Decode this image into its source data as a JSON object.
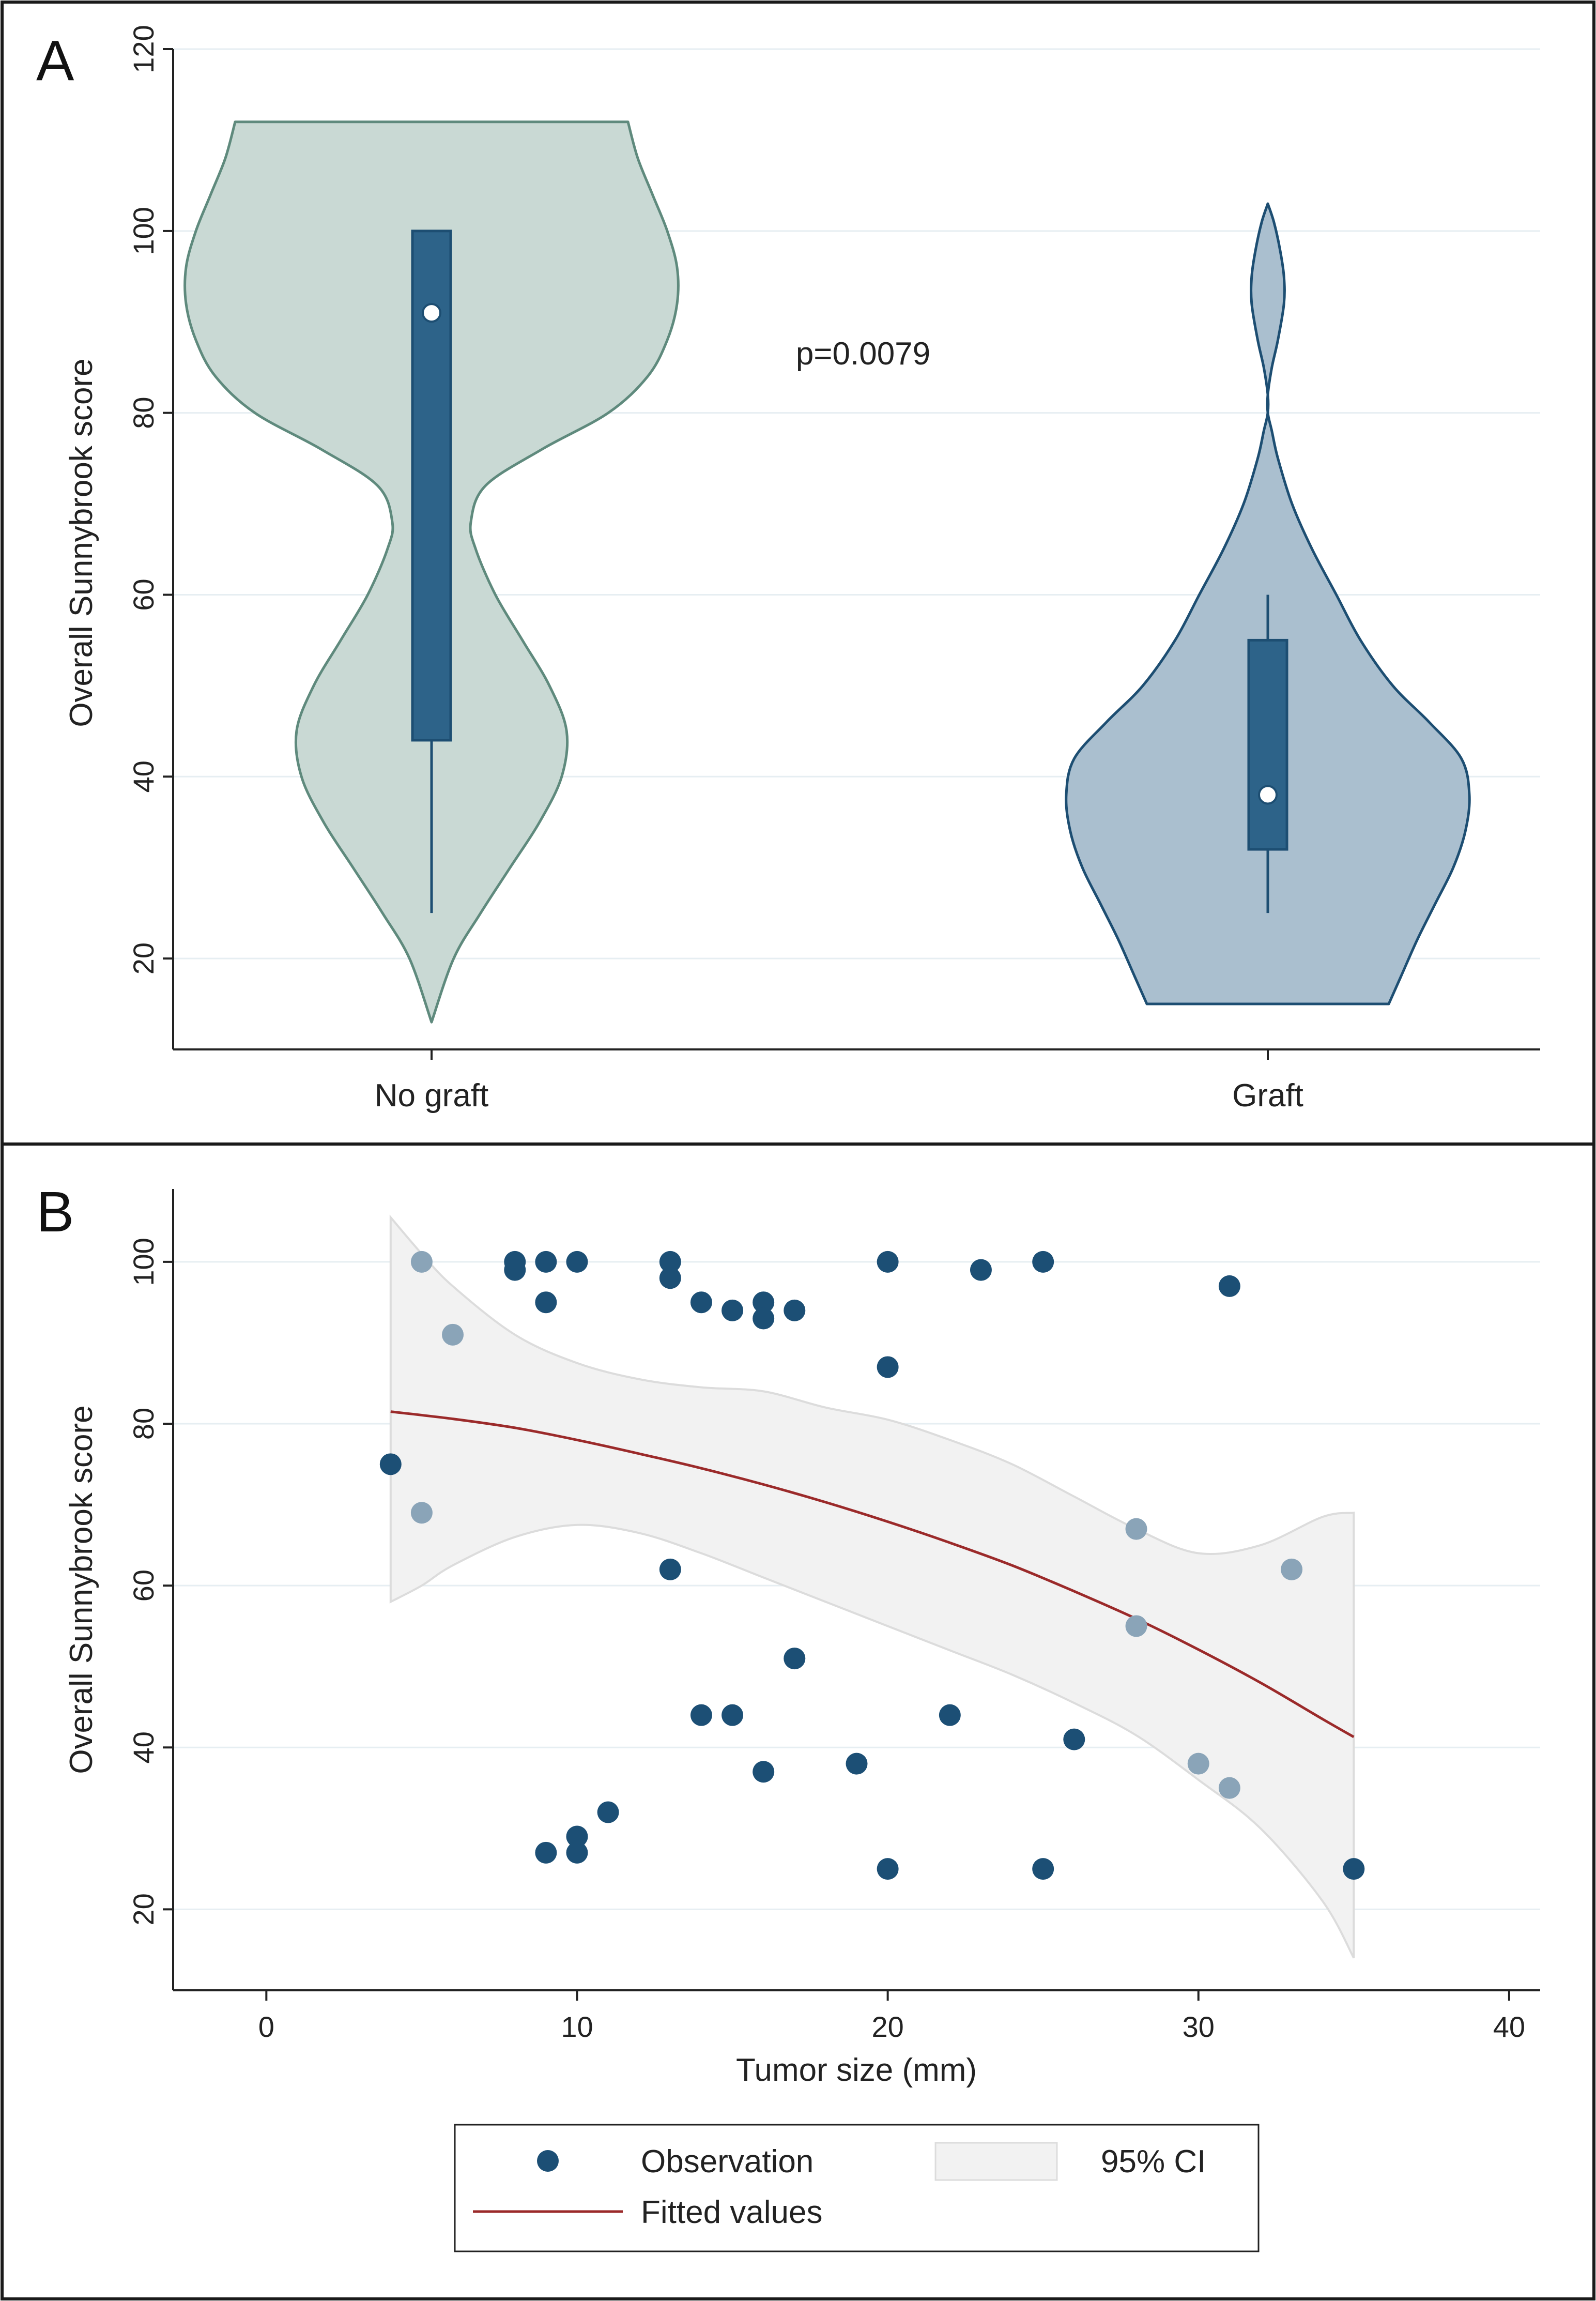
{
  "colors": {
    "frame": "#1a1a1a",
    "plot_bg": "#ffffff",
    "grid": "#e6eef2",
    "no_graft_fill": "#c9d9d4",
    "no_graft_line": "#5f8a7d",
    "graft_fill": "#aabfcf",
    "graft_line": "#1d4e72",
    "box": "#2d6389",
    "box_line": "#1d4e72",
    "obs_dark": "#1c4f75",
    "obs_light": "#8aa4b8",
    "ci_fill": "#f2f2f2",
    "ci_line": "#dcdcdc",
    "fit_line": "#9b2a2a"
  },
  "chart_data": [
    {
      "panel_label": "A",
      "type": "violin",
      "title": "",
      "ylabel": "Overall Sunnybrook score",
      "ylim": [
        10,
        120
      ],
      "yticks": [
        20,
        40,
        60,
        80,
        100,
        120
      ],
      "grid": true,
      "annotation": "p=0.0079",
      "groups": [
        {
          "name": "No graft",
          "density_range": [
            13,
            112
          ],
          "box": {
            "q1": 44,
            "median": 91,
            "q3": 100,
            "whisker_low": 25,
            "whisker_high": 100
          },
          "density_profile": [
            [
              13,
              0.0
            ],
            [
              20,
              0.09
            ],
            [
              25,
              0.2
            ],
            [
              30,
              0.32
            ],
            [
              35,
              0.44
            ],
            [
              40,
              0.53
            ],
            [
              45,
              0.55
            ],
            [
              50,
              0.48
            ],
            [
              55,
              0.37
            ],
            [
              60,
              0.26
            ],
            [
              65,
              0.18
            ],
            [
              68,
              0.16
            ],
            [
              72,
              0.22
            ],
            [
              76,
              0.45
            ],
            [
              80,
              0.72
            ],
            [
              84,
              0.88
            ],
            [
              88,
              0.96
            ],
            [
              92,
              1.0
            ],
            [
              96,
              1.0
            ],
            [
              100,
              0.96
            ],
            [
              104,
              0.9
            ],
            [
              108,
              0.84
            ],
            [
              112,
              0.8
            ]
          ]
        },
        {
          "name": "Graft",
          "density_range": [
            15,
            103
          ],
          "box": {
            "q1": 32,
            "median": 38,
            "q3": 55,
            "whisker_low": 25,
            "whisker_high": 60
          },
          "density_profile": [
            [
              15,
              0.6
            ],
            [
              18,
              0.66
            ],
            [
              22,
              0.74
            ],
            [
              26,
              0.83
            ],
            [
              30,
              0.92
            ],
            [
              34,
              0.98
            ],
            [
              38,
              1.0
            ],
            [
              42,
              0.96
            ],
            [
              46,
              0.8
            ],
            [
              50,
              0.62
            ],
            [
              55,
              0.46
            ],
            [
              60,
              0.34
            ],
            [
              65,
              0.22
            ],
            [
              70,
              0.12
            ],
            [
              75,
              0.05
            ],
            [
              78,
              0.02
            ],
            [
              80,
              0.0
            ],
            [
              82,
              0.0
            ],
            [
              85,
              0.02
            ],
            [
              88,
              0.05
            ],
            [
              92,
              0.08
            ],
            [
              95,
              0.08
            ],
            [
              98,
              0.06
            ],
            [
              101,
              0.03
            ],
            [
              103,
              0.0
            ]
          ]
        }
      ]
    },
    {
      "panel_label": "B",
      "type": "scatter",
      "title": "",
      "xlabel": "Tumor size (mm)",
      "ylabel": "Overall Sunnybrook score",
      "xlim": [
        -3,
        41
      ],
      "ylim": [
        10,
        109
      ],
      "xticks": [
        0,
        10,
        20,
        30,
        40
      ],
      "yticks": [
        20,
        40,
        60,
        80,
        100
      ],
      "grid": true,
      "legend_position": "bottom",
      "legend": {
        "observation": "Observation",
        "ci": "95% CI",
        "fitted": "Fitted values"
      },
      "observations": [
        {
          "x": 4,
          "y": 75,
          "tone": "dark"
        },
        {
          "x": 5,
          "y": 100,
          "tone": "light"
        },
        {
          "x": 5,
          "y": 69,
          "tone": "light"
        },
        {
          "x": 6,
          "y": 91,
          "tone": "light"
        },
        {
          "x": 8,
          "y": 100,
          "tone": "dark"
        },
        {
          "x": 8,
          "y": 99,
          "tone": "dark"
        },
        {
          "x": 9,
          "y": 100,
          "tone": "dark"
        },
        {
          "x": 9,
          "y": 95,
          "tone": "dark"
        },
        {
          "x": 9,
          "y": 27,
          "tone": "dark"
        },
        {
          "x": 10,
          "y": 100,
          "tone": "dark"
        },
        {
          "x": 10,
          "y": 29,
          "tone": "dark"
        },
        {
          "x": 10,
          "y": 27,
          "tone": "dark"
        },
        {
          "x": 11,
          "y": 32,
          "tone": "dark"
        },
        {
          "x": 13,
          "y": 100,
          "tone": "dark"
        },
        {
          "x": 13,
          "y": 98,
          "tone": "dark"
        },
        {
          "x": 13,
          "y": 62,
          "tone": "dark"
        },
        {
          "x": 14,
          "y": 95,
          "tone": "dark"
        },
        {
          "x": 14,
          "y": 44,
          "tone": "dark"
        },
        {
          "x": 15,
          "y": 94,
          "tone": "dark"
        },
        {
          "x": 15,
          "y": 44,
          "tone": "dark"
        },
        {
          "x": 16,
          "y": 95,
          "tone": "dark"
        },
        {
          "x": 16,
          "y": 93,
          "tone": "dark"
        },
        {
          "x": 16,
          "y": 37,
          "tone": "dark"
        },
        {
          "x": 17,
          "y": 94,
          "tone": "dark"
        },
        {
          "x": 17,
          "y": 51,
          "tone": "dark"
        },
        {
          "x": 19,
          "y": 38,
          "tone": "dark"
        },
        {
          "x": 20,
          "y": 100,
          "tone": "dark"
        },
        {
          "x": 20,
          "y": 87,
          "tone": "dark"
        },
        {
          "x": 20,
          "y": 25,
          "tone": "dark"
        },
        {
          "x": 22,
          "y": 44,
          "tone": "dark"
        },
        {
          "x": 23,
          "y": 99,
          "tone": "dark"
        },
        {
          "x": 25,
          "y": 100,
          "tone": "dark"
        },
        {
          "x": 25,
          "y": 25,
          "tone": "dark"
        },
        {
          "x": 26,
          "y": 41,
          "tone": "dark"
        },
        {
          "x": 28,
          "y": 67,
          "tone": "light"
        },
        {
          "x": 28,
          "y": 55,
          "tone": "light"
        },
        {
          "x": 30,
          "y": 38,
          "tone": "light"
        },
        {
          "x": 31,
          "y": 97,
          "tone": "dark"
        },
        {
          "x": 31,
          "y": 35,
          "tone": "light"
        },
        {
          "x": 33,
          "y": 62,
          "tone": "light"
        },
        {
          "x": 35,
          "y": 25,
          "tone": "dark"
        }
      ],
      "fitted": [
        {
          "x": 4,
          "y": 81.5
        },
        {
          "x": 6,
          "y": 80.6
        },
        {
          "x": 8,
          "y": 79.5
        },
        {
          "x": 10,
          "y": 78.0
        },
        {
          "x": 12,
          "y": 76.3
        },
        {
          "x": 14,
          "y": 74.5
        },
        {
          "x": 16,
          "y": 72.5
        },
        {
          "x": 18,
          "y": 70.3
        },
        {
          "x": 20,
          "y": 67.9
        },
        {
          "x": 22,
          "y": 65.3
        },
        {
          "x": 24,
          "y": 62.5
        },
        {
          "x": 26,
          "y": 59.3
        },
        {
          "x": 28,
          "y": 55.9
        },
        {
          "x": 30,
          "y": 52.1
        },
        {
          "x": 32,
          "y": 48.0
        },
        {
          "x": 34,
          "y": 43.5
        },
        {
          "x": 35,
          "y": 41.3
        }
      ],
      "ci_upper": [
        {
          "x": 4,
          "y": 105.5
        },
        {
          "x": 5,
          "y": 101
        },
        {
          "x": 6,
          "y": 97
        },
        {
          "x": 8,
          "y": 91
        },
        {
          "x": 10,
          "y": 87.5
        },
        {
          "x": 12,
          "y": 85.5
        },
        {
          "x": 14,
          "y": 84.5
        },
        {
          "x": 16,
          "y": 84
        },
        {
          "x": 18,
          "y": 82
        },
        {
          "x": 20,
          "y": 80.5
        },
        {
          "x": 22,
          "y": 78
        },
        {
          "x": 24,
          "y": 75
        },
        {
          "x": 26,
          "y": 71
        },
        {
          "x": 28,
          "y": 67
        },
        {
          "x": 30,
          "y": 64
        },
        {
          "x": 32,
          "y": 65
        },
        {
          "x": 34,
          "y": 68.5
        },
        {
          "x": 35,
          "y": 69
        }
      ],
      "ci_lower": [
        {
          "x": 4,
          "y": 58
        },
        {
          "x": 5,
          "y": 60
        },
        {
          "x": 6,
          "y": 62.5
        },
        {
          "x": 8,
          "y": 66
        },
        {
          "x": 10,
          "y": 67.5
        },
        {
          "x": 12,
          "y": 66.5
        },
        {
          "x": 14,
          "y": 64
        },
        {
          "x": 16,
          "y": 61
        },
        {
          "x": 18,
          "y": 58
        },
        {
          "x": 20,
          "y": 55
        },
        {
          "x": 22,
          "y": 52
        },
        {
          "x": 24,
          "y": 49
        },
        {
          "x": 26,
          "y": 45.5
        },
        {
          "x": 28,
          "y": 41.5
        },
        {
          "x": 30,
          "y": 36
        },
        {
          "x": 32,
          "y": 30
        },
        {
          "x": 34,
          "y": 21
        },
        {
          "x": 35,
          "y": 14
        }
      ]
    }
  ]
}
